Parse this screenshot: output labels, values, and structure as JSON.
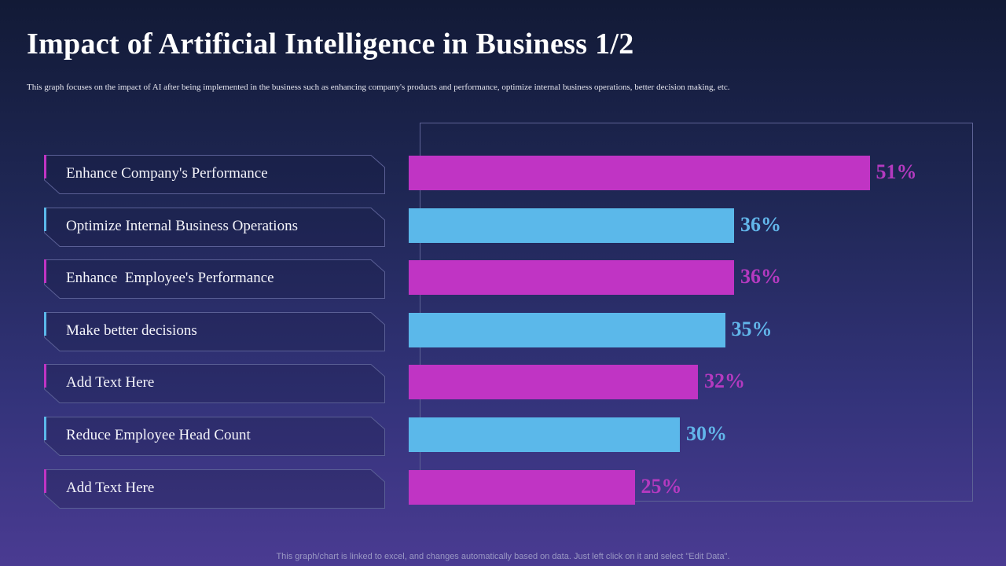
{
  "title": "Impact of Artificial Intelligence in Business 1/2",
  "subtitle": "This graph  focuses on the  impact of AI after  being  implemented  in the business  such as enhancing  company's products and performance,  optimize internal  business operations,  better  decision making,  etc.",
  "footer": "This graph/chart is linked to excel,  and changes automatically based on data. Just left click on it and select \"Edit Data\".",
  "colors": {
    "magenta": "#c034c4",
    "blue": "#5bb8ea",
    "magenta_text": "#b43ac0",
    "blue_text": "#62b6ea"
  },
  "chart_data": {
    "type": "bar",
    "orientation": "horizontal",
    "categories": [
      "Enhance Company's Performance",
      "Optimize Internal Business Operations",
      "Enhance  Employee's Performance",
      "Make better decisions",
      "Add Text Here",
      "Reduce Employee Head Count",
      "Add Text Here"
    ],
    "values": [
      51,
      36,
      36,
      35,
      32,
      30,
      25
    ],
    "labels": [
      "51%",
      "36%",
      "36%",
      "35%",
      "32%",
      "30%",
      "25%"
    ],
    "bar_colors": [
      "magenta",
      "blue",
      "magenta",
      "blue",
      "magenta",
      "blue",
      "magenta"
    ],
    "unit": "%",
    "grid": false
  }
}
